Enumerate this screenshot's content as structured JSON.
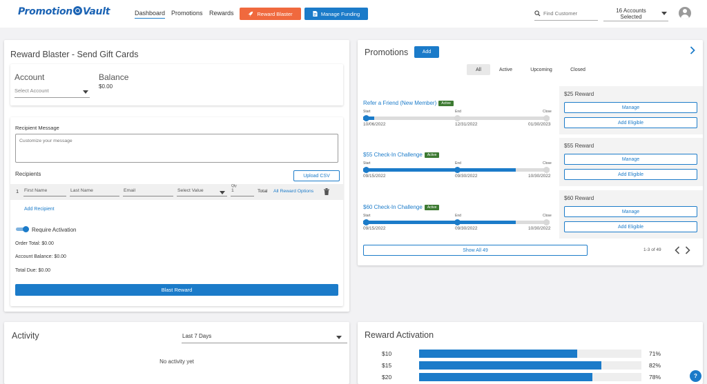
{
  "header": {
    "logo_left": "Promotion",
    "logo_right": "Vault",
    "nav": [
      "Dashboard",
      "Promotions",
      "Rewards"
    ],
    "reward_blaster_label": "Reward Blaster",
    "manage_funding_label": "Manage Funding",
    "search_placeholder": "Find Customer",
    "accounts_label": "16 Accounts Selected"
  },
  "blaster": {
    "title": "Reward Blaster - Send Gift Cards",
    "account_label": "Account",
    "account_placeholder": "Select Account",
    "balance_label": "Balance",
    "balance_value": "$0.00",
    "recipient_message_label": "Recipient Message",
    "message_placeholder": "Customize your message",
    "recipients_label": "Recipients",
    "upload_csv_label": "Upload CSV",
    "row_number": "1",
    "first_name_placeholder": "First Name",
    "last_name_placeholder": "Last Name",
    "email_placeholder": "Email",
    "select_value_placeholder": "Select Value",
    "qty_label": "Qty",
    "qty_value": "1",
    "total_label": "Total",
    "all_reward_options_label": "All Reward Options",
    "add_recipient_label": "Add Recipient",
    "require_activation_label": "Require Activation",
    "require_activation_on": true,
    "order_total": "Order Total: $0.00",
    "account_balance": "Account Balance: $0.00",
    "total_due": "Total Due: $0.00",
    "blast_button_label": "Blast Reward"
  },
  "activity": {
    "title": "Activity",
    "range_value": "Last 7 Days",
    "empty_text": "No activity yet"
  },
  "promotions": {
    "title": "Promotions",
    "add_label": "Add",
    "tabs": [
      "All",
      "Active",
      "Upcoming",
      "Closed"
    ],
    "active_tab": "All",
    "items": [
      {
        "name": "Refer a Friend (New Member)",
        "status": "Active",
        "start_label": "Start",
        "end_label": "End",
        "close_label": "Close",
        "start_date": "10/06/2022",
        "end_date": "12/31/2022",
        "close_date": "01/30/2023",
        "progress": 0.06,
        "reward": "$25 Reward",
        "manage_label": "Manage",
        "add_eligible_label": "Add Eligible"
      },
      {
        "name": "$55 Check-In Challenge",
        "status": "Active",
        "start_label": "Start",
        "end_label": "End",
        "close_label": "Close",
        "start_date": "09/15/2022",
        "end_date": "09/30/2022",
        "close_date": "10/30/2022",
        "progress": 0.82,
        "reward": "$55 Reward",
        "manage_label": "Manage",
        "add_eligible_label": "Add Eligible"
      },
      {
        "name": "$60 Check-In Challenge",
        "status": "Active",
        "start_label": "Start",
        "end_label": "End",
        "close_label": "Close",
        "start_date": "09/15/2022",
        "end_date": "09/30/2022",
        "close_date": "10/30/2022",
        "progress": 0.82,
        "reward": "$60 Reward",
        "manage_label": "Manage",
        "add_eligible_label": "Add Eligible"
      }
    ],
    "show_all_label": "Show All 49",
    "pagination": "1-3 of 49"
  },
  "reward_activation": {
    "title": "Reward Activation",
    "rows": [
      {
        "label": "$10",
        "percent": 71,
        "percent_text": "71%"
      },
      {
        "label": "$15",
        "percent": 82,
        "percent_text": "82%"
      },
      {
        "label": "$20",
        "percent": 78,
        "percent_text": "78%"
      }
    ]
  },
  "help": {
    "label": "?"
  },
  "colors": {
    "accent": "#1b7bc9",
    "orange": "#f0693e",
    "active_badge": "#3d7a32"
  }
}
